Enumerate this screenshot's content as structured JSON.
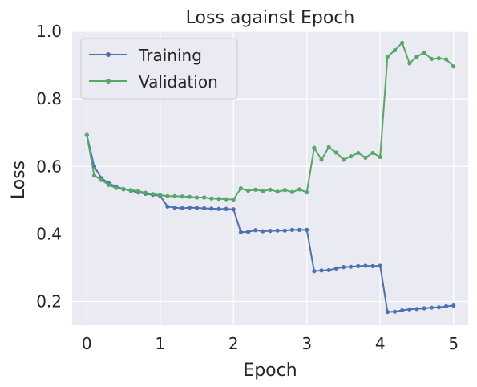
{
  "chart_data": {
    "type": "line",
    "title": "Loss against Epoch",
    "xlabel": "Epoch",
    "ylabel": "Loss",
    "xlim": [
      -0.2,
      5.2
    ],
    "ylim": [
      0.13,
      1.0
    ],
    "xticks": [
      0,
      1,
      2,
      3,
      4,
      5
    ],
    "xtick_labels": [
      "0",
      "1",
      "2",
      "3",
      "4",
      "5"
    ],
    "yticks": [
      0.2,
      0.4,
      0.6,
      0.8,
      1.0
    ],
    "ytick_labels": [
      "0.2",
      "0.4",
      "0.6",
      "0.8",
      "1.0"
    ],
    "grid": true,
    "legend_position": "top-left",
    "background": "#eaeaf2",
    "x": [
      0.0,
      0.1,
      0.2,
      0.3,
      0.4,
      0.5,
      0.6,
      0.7,
      0.8,
      0.9,
      1.0,
      1.1,
      1.2,
      1.3,
      1.4,
      1.5,
      1.6,
      1.7,
      1.8,
      1.9,
      2.0,
      2.1,
      2.2,
      2.3,
      2.4,
      2.5,
      2.6,
      2.7,
      2.8,
      2.9,
      3.0,
      3.1,
      3.2,
      3.3,
      3.4,
      3.5,
      3.6,
      3.7,
      3.8,
      3.9,
      4.0,
      4.1,
      4.2,
      4.3,
      4.4,
      4.5,
      4.6,
      4.7,
      4.8,
      4.9,
      5.0
    ],
    "series": [
      {
        "name": "Training",
        "color": "#4c72b0",
        "values": [
          0.693,
          0.6,
          0.565,
          0.55,
          0.54,
          0.533,
          0.528,
          0.523,
          0.519,
          0.516,
          0.513,
          0.481,
          0.478,
          0.476,
          0.478,
          0.477,
          0.476,
          0.475,
          0.474,
          0.474,
          0.473,
          0.405,
          0.406,
          0.411,
          0.408,
          0.409,
          0.41,
          0.41,
          0.412,
          0.412,
          0.412,
          0.29,
          0.292,
          0.293,
          0.298,
          0.302,
          0.303,
          0.305,
          0.306,
          0.305,
          0.306,
          0.169,
          0.17,
          0.174,
          0.177,
          0.178,
          0.18,
          0.182,
          0.183,
          0.186,
          0.188
        ]
      },
      {
        "name": "Validation",
        "color": "#55a868",
        "values": [
          0.693,
          0.573,
          0.56,
          0.545,
          0.536,
          0.532,
          0.53,
          0.527,
          0.522,
          0.518,
          0.515,
          0.512,
          0.512,
          0.511,
          0.51,
          0.508,
          0.508,
          0.505,
          0.504,
          0.503,
          0.502,
          0.535,
          0.528,
          0.531,
          0.527,
          0.531,
          0.525,
          0.53,
          0.524,
          0.532,
          0.523,
          0.655,
          0.62,
          0.657,
          0.641,
          0.62,
          0.63,
          0.64,
          0.626,
          0.64,
          0.628,
          0.925,
          0.944,
          0.966,
          0.905,
          0.925,
          0.937,
          0.918,
          0.92,
          0.917,
          0.896
        ]
      }
    ]
  }
}
